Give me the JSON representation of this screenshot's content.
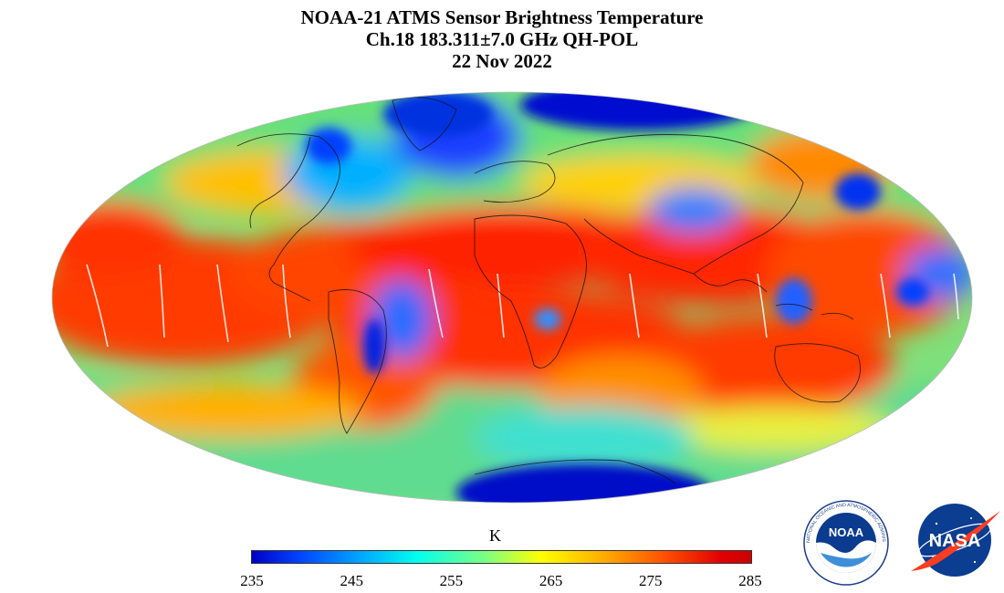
{
  "title": {
    "line1": "NOAA-21 ATMS Sensor Brightness Temperature",
    "line2": "Ch.18 183.311±7.0 GHz QH-POL",
    "line3": "22 Nov 2022"
  },
  "colorbar": {
    "unit_label": "K",
    "ticks": [
      "235",
      "245",
      "255",
      "265",
      "275",
      "285"
    ],
    "min": 235,
    "max": 285,
    "colors": [
      "#0000c8",
      "#0048ff",
      "#00a8ff",
      "#00ffee",
      "#7fff7f",
      "#ffff00",
      "#ffb000",
      "#ff5500",
      "#e10000"
    ]
  },
  "map": {
    "projection": "mollweide"
  },
  "logos": {
    "noaa_text": "NOAA",
    "noaa_ring_text": "NATIONAL OCEANIC AND ATMOSPHERIC ADMINISTRATION · U.S. DEPARTMENT OF COMMERCE",
    "nasa_text": "NASA"
  }
}
